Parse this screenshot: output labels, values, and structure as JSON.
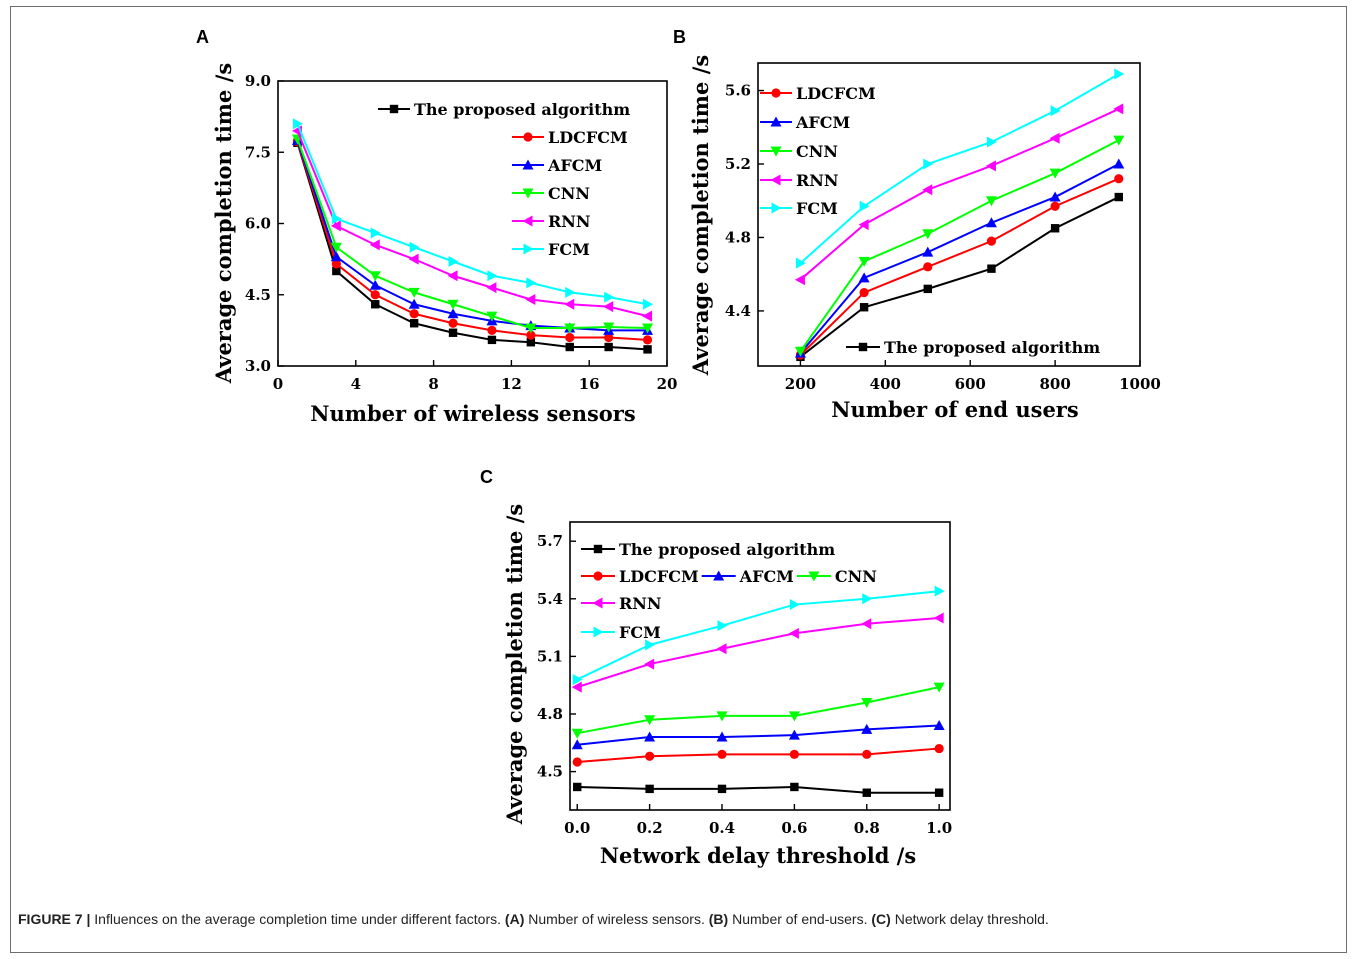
{
  "caption": {
    "label": "FIGURE 7 |",
    "text_1": " Influences on the average completion time under different factors. ",
    "a_tag": "(A)",
    "a_text": " Number of wireless sensors. ",
    "b_tag": "(B)",
    "b_text": " Number of end-users. ",
    "c_tag": "(C)",
    "c_text": " Network delay threshold."
  },
  "colors": {
    "The proposed algorithm": "#000000",
    "LDCFCM": "#ff0000",
    "AFCM": "#0000ff",
    "CNN": "#00ff00",
    "RNN": "#ff00ff",
    "FCM": "#00ffff"
  },
  "markers": {
    "The proposed algorithm": "square",
    "LDCFCM": "circle",
    "AFCM": "triangle-up",
    "CNN": "triangle-down",
    "RNN": "triangle-left",
    "FCM": "triangle-right"
  },
  "chart_data": [
    {
      "panel": "A",
      "type": "line",
      "xlabel": "Number of wireless sensors",
      "ylabel": "Average completion time /s",
      "xlim": [
        0,
        20
      ],
      "ylim": [
        3.0,
        9.0
      ],
      "xticks": [
        0,
        4,
        8,
        12,
        16,
        20
      ],
      "yticks": [
        3.0,
        4.5,
        6.0,
        7.5,
        9.0
      ],
      "xtick_labels": [
        "0",
        "4",
        "8",
        "12",
        "16",
        "20"
      ],
      "ytick_labels": [
        "3.0",
        "4.5",
        "6.0",
        "7.5",
        "9.0"
      ],
      "legend_position": "top-right",
      "x": [
        1,
        3,
        5,
        7,
        9,
        11,
        13,
        15,
        17,
        19
      ],
      "series": [
        {
          "name": "The proposed algorithm",
          "values": [
            7.7,
            5.0,
            4.3,
            3.9,
            3.7,
            3.55,
            3.5,
            3.4,
            3.4,
            3.35
          ]
        },
        {
          "name": "LDCFCM",
          "values": [
            7.72,
            5.15,
            4.5,
            4.1,
            3.9,
            3.75,
            3.65,
            3.6,
            3.6,
            3.55
          ]
        },
        {
          "name": "AFCM",
          "values": [
            7.75,
            5.3,
            4.7,
            4.3,
            4.1,
            3.95,
            3.85,
            3.8,
            3.75,
            3.75
          ]
        },
        {
          "name": "CNN",
          "values": [
            7.78,
            5.5,
            4.9,
            4.55,
            4.3,
            4.05,
            3.8,
            3.8,
            3.82,
            3.8
          ]
        },
        {
          "name": "RNN",
          "values": [
            7.95,
            5.95,
            5.55,
            5.25,
            4.9,
            4.65,
            4.4,
            4.3,
            4.25,
            4.05
          ]
        },
        {
          "name": "FCM",
          "values": [
            8.1,
            6.1,
            5.8,
            5.5,
            5.2,
            4.9,
            4.75,
            4.55,
            4.45,
            4.3
          ]
        }
      ]
    },
    {
      "panel": "B",
      "type": "line",
      "xlabel": "Number of end users",
      "ylabel": "Average completion time /s",
      "xlim": [
        100,
        1000
      ],
      "ylim": [
        4.1,
        5.75
      ],
      "xticks": [
        200,
        400,
        600,
        800,
        1000
      ],
      "yticks": [
        4.4,
        4.8,
        5.2,
        5.6
      ],
      "xtick_labels": [
        "200",
        "400",
        "600",
        "800",
        "1000"
      ],
      "ytick_labels": [
        "4.4",
        "4.8",
        "5.2",
        "5.6"
      ],
      "legend_position": "top-left and bottom-right",
      "x": [
        200,
        350,
        500,
        650,
        800,
        950
      ],
      "series": [
        {
          "name": "The proposed algorithm",
          "values": [
            4.15,
            4.42,
            4.52,
            4.63,
            4.85,
            5.02
          ]
        },
        {
          "name": "LDCFCM",
          "values": [
            4.16,
            4.5,
            4.64,
            4.78,
            4.97,
            5.12
          ]
        },
        {
          "name": "AFCM",
          "values": [
            4.17,
            4.58,
            4.72,
            4.88,
            5.02,
            5.2
          ]
        },
        {
          "name": "CNN",
          "values": [
            4.18,
            4.67,
            4.82,
            5.0,
            5.15,
            5.33
          ]
        },
        {
          "name": "RNN",
          "values": [
            4.57,
            4.87,
            5.06,
            5.19,
            5.34,
            5.5
          ]
        },
        {
          "name": "FCM",
          "values": [
            4.66,
            4.97,
            5.2,
            5.32,
            5.49,
            5.69
          ]
        }
      ]
    },
    {
      "panel": "C",
      "type": "line",
      "xlabel": "Network delay threshold /s",
      "ylabel": "Average completion time /s",
      "xlim": [
        -0.02,
        1.03
      ],
      "ylim": [
        4.3,
        5.8
      ],
      "xticks": [
        0.0,
        0.2,
        0.4,
        0.6,
        0.8,
        1.0
      ],
      "yticks": [
        4.5,
        4.8,
        5.1,
        5.4,
        5.7
      ],
      "xtick_labels": [
        "0.0",
        "0.2",
        "0.4",
        "0.6",
        "0.8",
        "1.0"
      ],
      "ytick_labels": [
        "4.5",
        "4.8",
        "5.1",
        "5.4",
        "5.7"
      ],
      "legend_position": "top-left",
      "x": [
        0.0,
        0.2,
        0.4,
        0.6,
        0.8,
        1.0
      ],
      "series": [
        {
          "name": "The proposed algorithm",
          "values": [
            4.42,
            4.41,
            4.41,
            4.42,
            4.39,
            4.39
          ]
        },
        {
          "name": "LDCFCM",
          "values": [
            4.55,
            4.58,
            4.59,
            4.59,
            4.59,
            4.62
          ]
        },
        {
          "name": "AFCM",
          "values": [
            4.64,
            4.68,
            4.68,
            4.69,
            4.72,
            4.74
          ]
        },
        {
          "name": "CNN",
          "values": [
            4.7,
            4.77,
            4.79,
            4.79,
            4.86,
            4.94
          ]
        },
        {
          "name": "RNN",
          "values": [
            4.94,
            5.06,
            5.14,
            5.22,
            5.27,
            5.3
          ]
        },
        {
          "name": "FCM",
          "values": [
            4.98,
            5.16,
            5.26,
            5.37,
            5.4,
            5.44
          ]
        }
      ]
    }
  ]
}
